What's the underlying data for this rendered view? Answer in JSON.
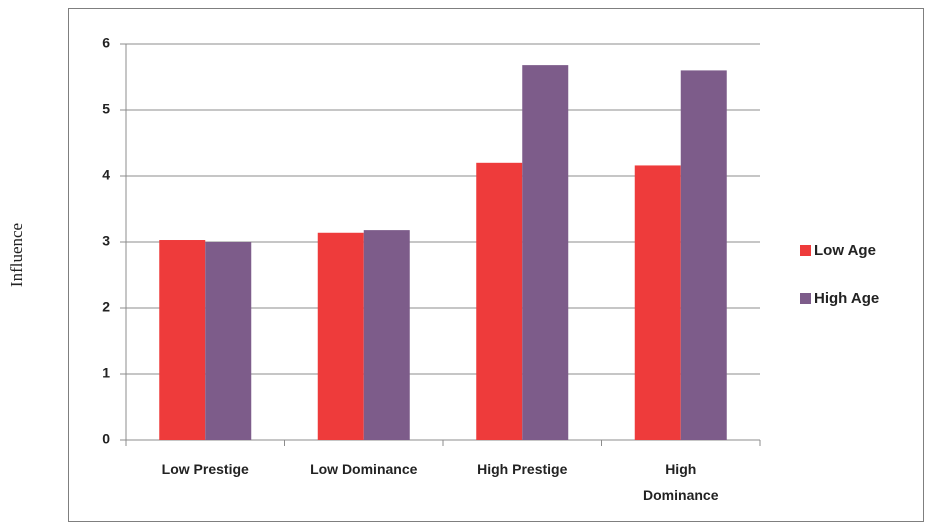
{
  "chart_data": {
    "type": "bar",
    "title": "",
    "xlabel": "",
    "ylabel": "Influence",
    "ylim": [
      0,
      6
    ],
    "yticks": [
      "0",
      "1",
      "2",
      "3",
      "4",
      "5",
      "6"
    ],
    "grid": true,
    "legend_position": "right",
    "categories": [
      [
        "Low Prestige"
      ],
      [
        "Low Dominance"
      ],
      [
        "High Prestige"
      ],
      [
        "High",
        "Dominance"
      ]
    ],
    "series": [
      {
        "name": "Low Age",
        "color": "#ee3b3b",
        "values": [
          3.03,
          3.14,
          4.2,
          4.16
        ]
      },
      {
        "name": "High Age",
        "color": "#7d5c8a",
        "values": [
          3.0,
          3.18,
          5.68,
          5.6
        ]
      }
    ]
  }
}
